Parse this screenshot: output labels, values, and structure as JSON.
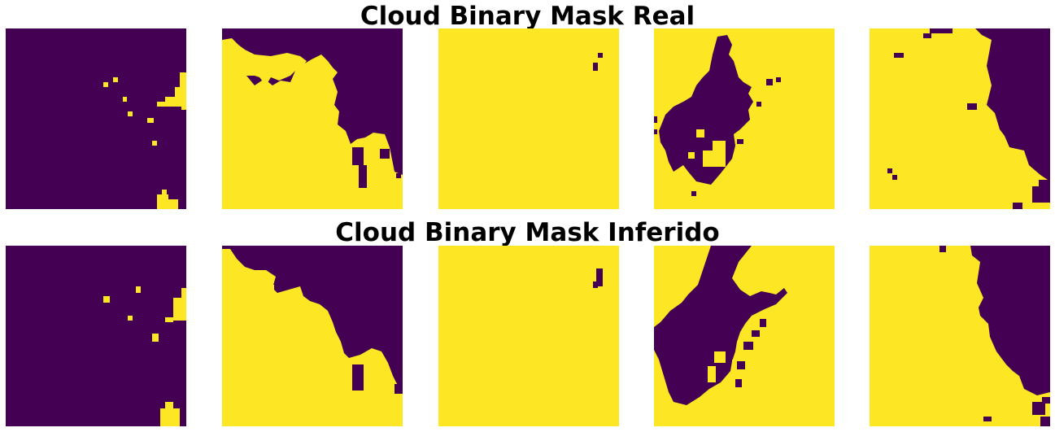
{
  "colors": {
    "cloud": "#fde725",
    "clear": "#440154"
  },
  "rows": [
    {
      "title": "Cloud Binary Mask Real"
    },
    {
      "title": "Cloud Binary Mask Inferido"
    }
  ],
  "chart_data": [
    {
      "type": "heatmap",
      "title": "Cloud Binary Mask Real",
      "grid": false,
      "panels": [
        {
          "panel": 1,
          "dominant": "clear",
          "cloud_fraction": 0.05
        },
        {
          "panel": 2,
          "dominant": "cloud",
          "cloud_fraction": 0.72
        },
        {
          "panel": 3,
          "dominant": "cloud",
          "cloud_fraction": 0.99
        },
        {
          "panel": 4,
          "dominant": "cloud",
          "cloud_fraction": 0.7
        },
        {
          "panel": 5,
          "dominant": "cloud",
          "cloud_fraction": 0.66
        }
      ]
    },
    {
      "type": "heatmap",
      "title": "Cloud Binary Mask Inferido",
      "grid": false,
      "panels": [
        {
          "panel": 1,
          "dominant": "clear",
          "cloud_fraction": 0.06
        },
        {
          "panel": 2,
          "dominant": "cloud",
          "cloud_fraction": 0.7
        },
        {
          "panel": 3,
          "dominant": "cloud",
          "cloud_fraction": 0.99
        },
        {
          "panel": 4,
          "dominant": "cloud",
          "cloud_fraction": 0.66
        },
        {
          "panel": 5,
          "dominant": "cloud",
          "cloud_fraction": 0.7
        }
      ]
    }
  ]
}
